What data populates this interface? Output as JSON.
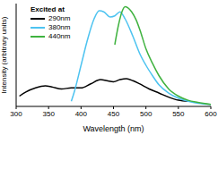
{
  "chart_data": {
    "type": "line",
    "x_label": "Wavelength (nm)",
    "y_label": "Intensity (arbitrary units)",
    "legend_title": "Excited at",
    "legend": "upper left",
    "grid": false,
    "tick_labels": "x",
    "xlim": [
      300,
      600
    ],
    "xticks": [
      300,
      350,
      400,
      450,
      500,
      550,
      600
    ],
    "ylim": [
      0,
      100
    ],
    "series": [
      {
        "name": "290nm",
        "color": "#000000",
        "x": [
          305,
          315,
          330,
          345,
          355,
          370,
          385,
          400,
          415,
          430,
          440,
          450,
          460,
          470,
          480,
          490,
          505,
          520,
          535,
          550,
          565
        ],
        "values": [
          10,
          14,
          18,
          20,
          19,
          17,
          18,
          18,
          22,
          26,
          25,
          24,
          26,
          27,
          25,
          22,
          17,
          13,
          9,
          6,
          5
        ]
      },
      {
        "name": "380nm",
        "color": "#4dc3f0",
        "x": [
          385,
          390,
          400,
          410,
          420,
          428,
          435,
          445,
          452,
          460,
          468,
          480,
          490,
          500,
          510,
          520,
          535,
          550,
          565,
          580,
          600
        ],
        "values": [
          5,
          15,
          40,
          65,
          85,
          93,
          92,
          87,
          88,
          92,
          85,
          68,
          52,
          40,
          30,
          21,
          13,
          8,
          5,
          3,
          2
        ]
      },
      {
        "name": "440nm",
        "color": "#3fb23f",
        "x": [
          452,
          458,
          463,
          468,
          472,
          478,
          485,
          492,
          500,
          510,
          520,
          535,
          550,
          565,
          580,
          600
        ],
        "values": [
          60,
          80,
          92,
          97,
          96,
          92,
          84,
          72,
          56,
          42,
          30,
          17,
          10,
          6,
          4,
          2
        ]
      }
    ]
  }
}
